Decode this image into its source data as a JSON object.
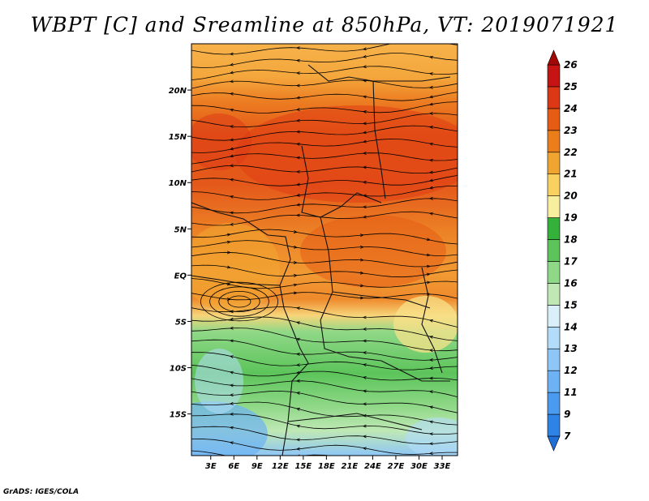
{
  "title": "WBPT [C] and Sreamline at 850hPa, VT: 2019071921",
  "footer": "GrADS: IGES/COLA",
  "lat_ticks": [
    {
      "label": "20N",
      "lat": 20
    },
    {
      "label": "15N",
      "lat": 15
    },
    {
      "label": "10N",
      "lat": 10
    },
    {
      "label": "5N",
      "lat": 5
    },
    {
      "label": "EQ",
      "lat": 0
    },
    {
      "label": "5S",
      "lat": -5
    },
    {
      "label": "10S",
      "lat": -10
    },
    {
      "label": "15S",
      "lat": -15
    }
  ],
  "lon_ticks": [
    {
      "label": "3E",
      "lon": 3
    },
    {
      "label": "6E",
      "lon": 6
    },
    {
      "label": "9E",
      "lon": 9
    },
    {
      "label": "12E",
      "lon": 12
    },
    {
      "label": "15E",
      "lon": 15
    },
    {
      "label": "18E",
      "lon": 18
    },
    {
      "label": "21E",
      "lon": 21
    },
    {
      "label": "24E",
      "lon": 24
    },
    {
      "label": "27E",
      "lon": 27
    },
    {
      "label": "30E",
      "lon": 30
    },
    {
      "label": "33E",
      "lon": 33
    }
  ],
  "map_extent": {
    "lon_min": 0.5,
    "lon_max": 35,
    "lat_min": -19.5,
    "lat_max": 25
  },
  "colorbar": {
    "labels": [
      "7",
      "9",
      "11",
      "12",
      "13",
      "14",
      "15",
      "16",
      "17",
      "18",
      "19",
      "20",
      "21",
      "22",
      "23",
      "24",
      "25",
      "26"
    ],
    "colors": [
      "#1f6fd6",
      "#2d83e6",
      "#4a9bf0",
      "#6cb2f4",
      "#8ec7f7",
      "#b3dcfa",
      "#d9f0fb",
      "#bfe8b5",
      "#8fd887",
      "#5cc45a",
      "#34b13a",
      "#f8ef9e",
      "#f8d160",
      "#f1a531",
      "#eb7e1a",
      "#e65c15",
      "#dc3816",
      "#c51413",
      "#a10808"
    ]
  },
  "wbpt_bands": [
    {
      "lat_top": 25,
      "lat_bottom": 19,
      "value_range": "20-21"
    },
    {
      "lat_top": 19,
      "lat_bottom": 2,
      "value_range": "22-24"
    },
    {
      "lat_top": 2,
      "lat_bottom": -4,
      "value_range": "21-23"
    },
    {
      "lat_top": -4,
      "lat_bottom": -14,
      "value_range": "16-18"
    },
    {
      "lat_top": -14,
      "lat_bottom": -19.5,
      "value_range": "13-17"
    }
  ]
}
